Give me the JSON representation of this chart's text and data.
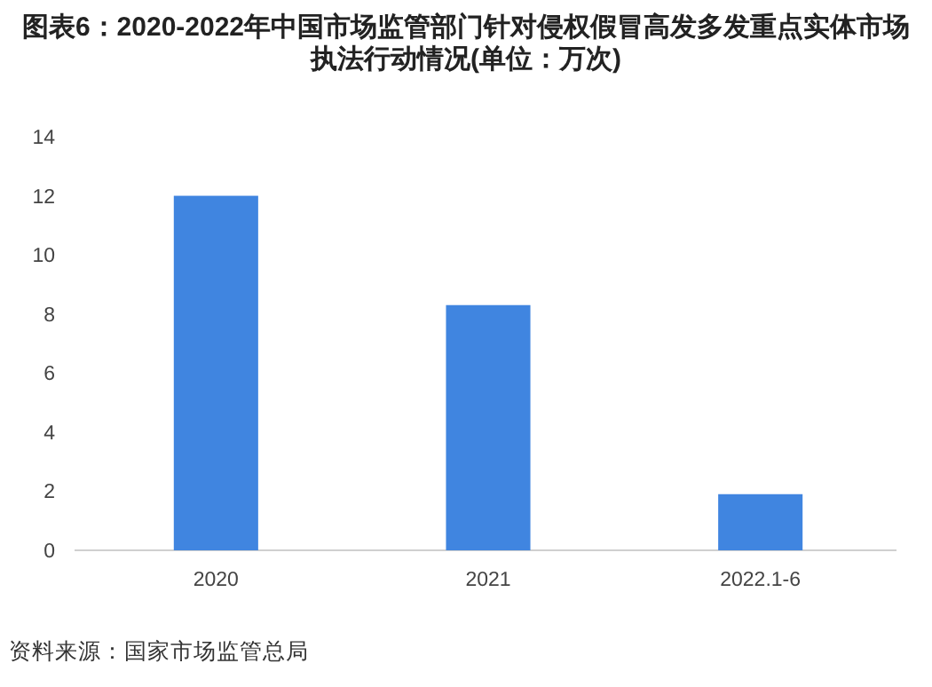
{
  "chart_data": {
    "type": "bar",
    "title": "图表6：2020-2022年中国市场监管部门针对侵权假冒高发多发重点实体市场执法行动情况(单位：万次)",
    "categories": [
      "2020",
      "2021",
      "2022.1-6"
    ],
    "values": [
      12,
      8.3,
      1.9
    ],
    "color": "#4085e0",
    "ylim": [
      0,
      14
    ],
    "yticks": [
      0,
      2,
      4,
      6,
      8,
      10,
      12,
      14
    ],
    "annotations": [
      "资料来源：国家市场监管总局"
    ]
  }
}
